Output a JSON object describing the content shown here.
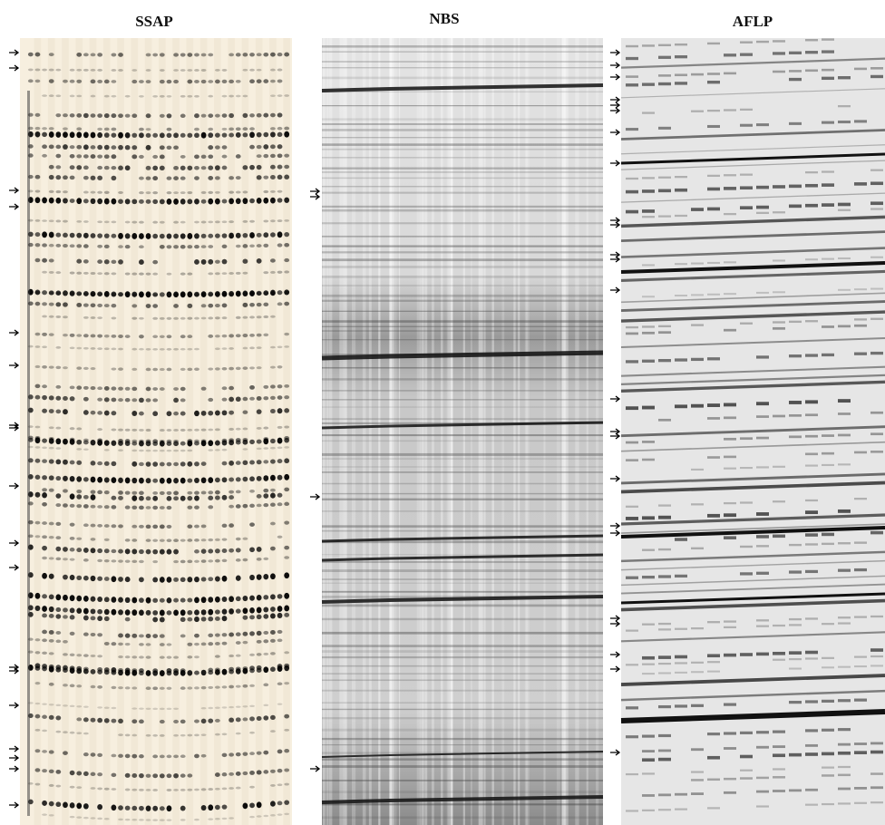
{
  "panels": [
    {
      "title": "SSAP"
    },
    {
      "title": "NBS"
    },
    {
      "title": "AFLP"
    }
  ]
}
